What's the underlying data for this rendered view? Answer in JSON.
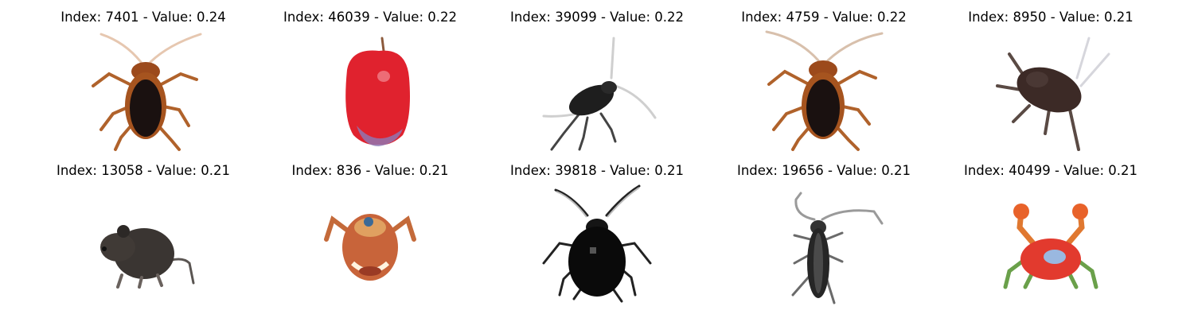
{
  "thumbnails": [
    {
      "title": "Index: 7401 - Value: 0.24",
      "subject": "cockroach"
    },
    {
      "title": "Index: 46039 - Value: 0.22",
      "subject": "apple"
    },
    {
      "title": "Index: 39099 - Value: 0.22",
      "subject": "cricket"
    },
    {
      "title": "Index: 4759 - Value: 0.22",
      "subject": "cockroach"
    },
    {
      "title": "Index: 8950 - Value: 0.21",
      "subject": "cockroach"
    },
    {
      "title": "Index: 13058 - Value: 0.21",
      "subject": "mouse"
    },
    {
      "title": "Index: 836 - Value: 0.21",
      "subject": "crab"
    },
    {
      "title": "Index: 39818 - Value: 0.21",
      "subject": "beetle"
    },
    {
      "title": "Index: 19656 - Value: 0.21",
      "subject": "longhorn-beetle"
    },
    {
      "title": "Index: 40499 - Value: 0.21",
      "subject": "crab"
    }
  ]
}
